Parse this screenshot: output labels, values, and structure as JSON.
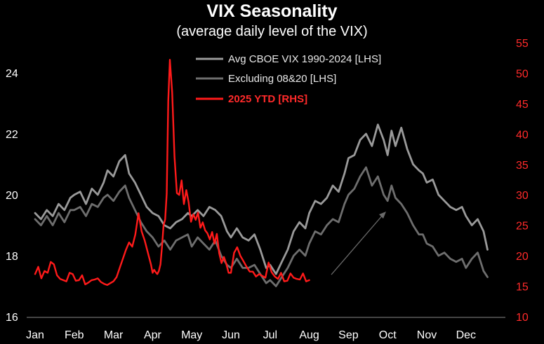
{
  "chart_data": {
    "type": "line",
    "title": "VIX Seasonality",
    "subtitle": "(average daily level of the VIX)",
    "x_categories": [
      "Jan",
      "Feb",
      "Mar",
      "Apr",
      "May",
      "Jun",
      "Jul",
      "Aug",
      "Sep",
      "Oct",
      "Nov",
      "Dec"
    ],
    "ylim_left": [
      16,
      24
    ],
    "yticks_left": [
      16,
      18,
      20,
      22,
      24
    ],
    "ylim_right": [
      10,
      55
    ],
    "yticks_right": [
      10,
      15,
      20,
      25,
      30,
      35,
      40,
      45,
      50,
      55
    ],
    "legend_position": "top-center",
    "grid": false,
    "series": [
      {
        "name": "Avg CBOE VIX 1990-2024 [LHS]",
        "axis": "left",
        "color": "#9a9a9a",
        "x": [
          0.0,
          0.15,
          0.3,
          0.45,
          0.6,
          0.75,
          0.9,
          1.0,
          1.15,
          1.3,
          1.45,
          1.6,
          1.75,
          1.85,
          2.0,
          2.15,
          2.3,
          2.4,
          2.55,
          2.7,
          2.85,
          3.0,
          3.15,
          3.3,
          3.45,
          3.6,
          3.75,
          3.9,
          4.0,
          4.15,
          4.3,
          4.45,
          4.6,
          4.75,
          4.9,
          5.0,
          5.15,
          5.3,
          5.45,
          5.6,
          5.75,
          5.9,
          6.0,
          6.15,
          6.3,
          6.45,
          6.6,
          6.75,
          6.9,
          7.0,
          7.15,
          7.3,
          7.45,
          7.6,
          7.75,
          7.9,
          8.0,
          8.15,
          8.3,
          8.45,
          8.6,
          8.75,
          8.9,
          9.0,
          9.1,
          9.2,
          9.35,
          9.5,
          9.65,
          9.8,
          9.9,
          10.0,
          10.15,
          10.3,
          10.45,
          10.6,
          10.75,
          10.9,
          11.0,
          11.15,
          11.3,
          11.45,
          11.55
        ],
        "y": [
          19.4,
          19.2,
          19.5,
          19.3,
          19.7,
          19.5,
          19.9,
          20.0,
          20.1,
          19.7,
          20.2,
          20.0,
          20.4,
          20.8,
          20.6,
          21.1,
          21.3,
          20.7,
          20.4,
          20.0,
          19.6,
          19.4,
          19.3,
          19.0,
          18.9,
          19.1,
          19.2,
          19.4,
          19.3,
          19.5,
          19.3,
          19.6,
          19.5,
          19.3,
          18.8,
          18.6,
          18.9,
          18.6,
          18.5,
          18.7,
          18.2,
          17.6,
          17.7,
          17.4,
          17.8,
          18.2,
          18.8,
          19.1,
          18.9,
          19.4,
          19.8,
          19.7,
          19.9,
          20.3,
          20.1,
          20.7,
          21.2,
          21.3,
          21.8,
          22.0,
          21.6,
          22.3,
          21.8,
          21.3,
          22.1,
          21.6,
          22.2,
          21.5,
          21.0,
          20.8,
          20.7,
          20.4,
          20.5,
          20.0,
          19.8,
          19.6,
          19.5,
          19.6,
          19.3,
          19.0,
          19.2,
          18.8,
          18.2
        ]
      },
      {
        "name": "Excluding 08&20 [LHS]",
        "axis": "left",
        "color": "#6e6e6e",
        "x": [
          0.0,
          0.15,
          0.3,
          0.45,
          0.6,
          0.75,
          0.9,
          1.0,
          1.15,
          1.3,
          1.45,
          1.6,
          1.75,
          1.85,
          2.0,
          2.15,
          2.3,
          2.4,
          2.55,
          2.7,
          2.85,
          3.0,
          3.15,
          3.3,
          3.45,
          3.6,
          3.75,
          3.9,
          4.0,
          4.15,
          4.3,
          4.45,
          4.6,
          4.75,
          4.9,
          5.0,
          5.15,
          5.3,
          5.45,
          5.6,
          5.75,
          5.9,
          6.0,
          6.15,
          6.3,
          6.45,
          6.6,
          6.75,
          6.9,
          7.0,
          7.15,
          7.3,
          7.45,
          7.6,
          7.75,
          7.9,
          8.0,
          8.15,
          8.3,
          8.45,
          8.6,
          8.75,
          8.9,
          9.0,
          9.1,
          9.2,
          9.35,
          9.5,
          9.65,
          9.8,
          9.9,
          10.0,
          10.15,
          10.3,
          10.45,
          10.6,
          10.75,
          10.9,
          11.0,
          11.15,
          11.3,
          11.45,
          11.55
        ],
        "y": [
          19.2,
          19.0,
          19.3,
          19.0,
          19.4,
          19.1,
          19.5,
          19.5,
          19.6,
          19.3,
          19.7,
          19.6,
          19.9,
          20.0,
          19.8,
          20.1,
          20.3,
          19.9,
          19.5,
          19.1,
          18.8,
          18.6,
          18.3,
          18.5,
          18.2,
          18.5,
          18.6,
          18.7,
          18.3,
          18.6,
          18.4,
          18.2,
          18.5,
          18.0,
          17.7,
          17.6,
          17.9,
          17.6,
          17.6,
          17.7,
          17.4,
          17.1,
          17.2,
          17.0,
          17.3,
          17.6,
          18.0,
          18.2,
          18.0,
          18.4,
          18.8,
          18.7,
          19.0,
          19.2,
          19.1,
          19.7,
          20.0,
          20.2,
          20.6,
          20.9,
          20.3,
          20.6,
          20.0,
          19.8,
          20.3,
          19.9,
          19.7,
          19.4,
          19.0,
          18.7,
          18.7,
          18.4,
          18.3,
          18.0,
          18.1,
          17.9,
          17.8,
          17.9,
          17.6,
          17.9,
          18.1,
          17.5,
          17.3
        ]
      },
      {
        "name": "2025 YTD [RHS]",
        "axis": "right",
        "color": "#ff1a1a",
        "x": [
          0.0,
          0.08,
          0.16,
          0.24,
          0.32,
          0.4,
          0.48,
          0.56,
          0.64,
          0.72,
          0.8,
          0.88,
          0.96,
          1.04,
          1.12,
          1.2,
          1.28,
          1.36,
          1.44,
          1.52,
          1.6,
          1.68,
          1.76,
          1.84,
          1.92,
          2.0,
          2.08,
          2.16,
          2.24,
          2.32,
          2.4,
          2.48,
          2.56,
          2.64,
          2.72,
          2.8,
          2.88,
          2.96,
          3.0,
          3.04,
          3.08,
          3.12,
          3.16,
          3.2,
          3.24,
          3.28,
          3.32,
          3.36,
          3.4,
          3.44,
          3.5,
          3.56,
          3.62,
          3.68,
          3.74,
          3.8,
          3.86,
          3.92,
          3.98,
          4.04,
          4.1,
          4.16,
          4.22,
          4.28,
          4.34,
          4.4,
          4.46,
          4.52,
          4.58,
          4.64,
          4.7,
          4.76,
          4.82,
          4.88,
          4.94,
          5.0,
          5.08,
          5.16,
          5.24,
          5.32,
          5.4,
          5.48,
          5.56,
          5.64,
          5.72,
          5.8,
          5.88,
          5.96,
          6.04,
          6.12,
          6.2,
          6.28,
          6.36,
          6.44,
          6.52,
          6.6,
          6.68,
          6.76,
          6.84,
          6.92,
          7.0
        ],
        "y": [
          17.0,
          18.2,
          16.3,
          17.5,
          17.2,
          19.0,
          18.6,
          16.8,
          16.2,
          16.0,
          15.8,
          17.2,
          17.0,
          15.9,
          16.0,
          16.8,
          15.3,
          15.6,
          16.0,
          16.1,
          16.3,
          15.7,
          15.4,
          15.2,
          15.5,
          15.8,
          16.5,
          18.0,
          19.5,
          21.0,
          22.2,
          21.5,
          23.5,
          27.0,
          24.0,
          22.5,
          20.5,
          18.5,
          17.2,
          17.7,
          17.3,
          17.0,
          17.5,
          18.6,
          21.5,
          25.0,
          26.0,
          30.2,
          45.4,
          52.2,
          46.8,
          36.3,
          30.3,
          30.0,
          32.4,
          28.5,
          30.8,
          28.8,
          25.6,
          26.8,
          25.9,
          27.1,
          24.6,
          25.5,
          24.2,
          23.7,
          22.7,
          23.9,
          22.0,
          23.6,
          20.4,
          18.8,
          19.8,
          18.7,
          17.2,
          17.2,
          20.5,
          21.4,
          20.0,
          19.1,
          18.2,
          17.4,
          17.4,
          16.6,
          17.0,
          16.7,
          16.4,
          18.9,
          17.3,
          16.6,
          16.2,
          17.2,
          15.8,
          15.9,
          17.1,
          16.4,
          16.2,
          16.1,
          17.1,
          15.8,
          16.0
        ]
      }
    ]
  }
}
